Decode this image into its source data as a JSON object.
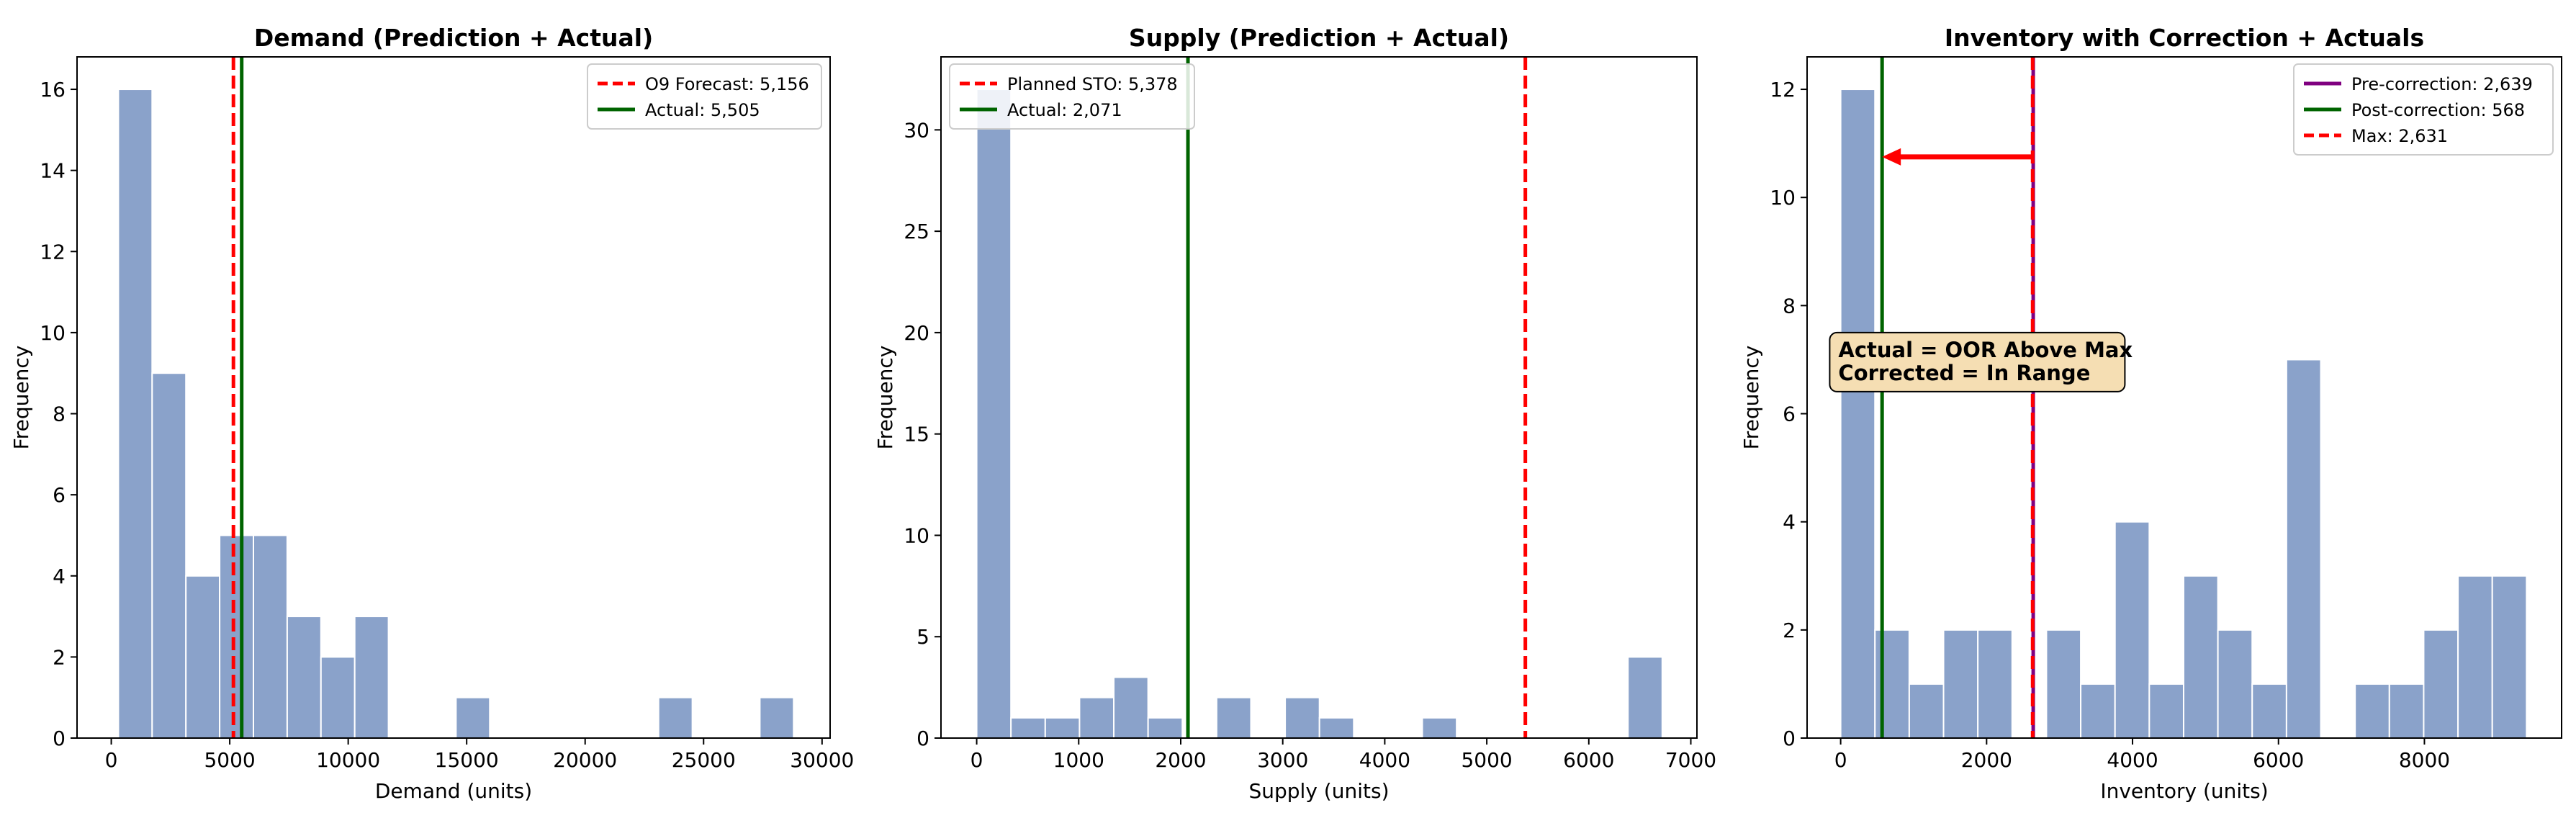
{
  "chart_data": [
    {
      "type": "bar",
      "title": "Demand (Prediction + Actual)",
      "xlabel": "Demand (units)",
      "ylabel": "Frequency",
      "xlim": [
        -1445,
        30340
      ],
      "ylim": [
        0,
        16.8
      ],
      "xticks": [
        0,
        5000,
        10000,
        15000,
        20000,
        25000,
        30000
      ],
      "yticks": [
        0,
        2,
        4,
        6,
        8,
        10,
        12,
        14,
        16
      ],
      "bin_edges": [
        300,
        1725,
        3150,
        4575,
        6000,
        7425,
        8850,
        10275,
        11700,
        13125,
        14550,
        15975,
        17400,
        18825,
        20250,
        21675,
        23100,
        24525,
        25950,
        27375,
        28800
      ],
      "counts": [
        16,
        9,
        4,
        5,
        5,
        3,
        2,
        3,
        0,
        0,
        1,
        0,
        0,
        0,
        0,
        0,
        1,
        0,
        0,
        1
      ],
      "lines": [
        {
          "label": "O9 Forecast: 5,156",
          "x": 5156,
          "color": "#ff0000",
          "style": "dashed"
        },
        {
          "label": "Actual: 5,505",
          "x": 5505,
          "color": "#006400",
          "style": "solid"
        }
      ],
      "legend": "top-right"
    },
    {
      "type": "bar",
      "title": "Supply (Prediction + Actual)",
      "xlabel": "Supply (units)",
      "ylabel": "Frequency",
      "xlim": [
        -350,
        7060
      ],
      "ylim": [
        0,
        33.6
      ],
      "xticks": [
        0,
        1000,
        2000,
        3000,
        4000,
        5000,
        6000,
        7000
      ],
      "yticks": [
        0,
        5,
        10,
        15,
        20,
        25,
        30
      ],
      "bin_edges": [
        0,
        336,
        672,
        1008,
        1344,
        1680,
        2016,
        2352,
        2688,
        3024,
        3360,
        3696,
        4032,
        4368,
        4704,
        5040,
        5376,
        5712,
        6048,
        6384,
        6720
      ],
      "counts": [
        32,
        1,
        1,
        2,
        3,
        1,
        0,
        2,
        0,
        2,
        1,
        0,
        0,
        1,
        0,
        0,
        0,
        0,
        0,
        4
      ],
      "lines": [
        {
          "label": "Planned STO: 5,378",
          "x": 5378,
          "color": "#ff0000",
          "style": "dashed"
        },
        {
          "label": "Actual: 2,071",
          "x": 2071,
          "color": "#006400",
          "style": "solid"
        }
      ],
      "legend": "top-left"
    },
    {
      "type": "bar",
      "title": "Inventory with Correction + Actuals",
      "xlabel": "Inventory (units)",
      "ylabel": "Frequency",
      "xlim": [
        -460,
        9880
      ],
      "ylim": [
        0,
        12.6
      ],
      "xticks": [
        0,
        2000,
        4000,
        6000,
        8000
      ],
      "yticks": [
        0,
        2,
        4,
        6,
        8,
        10,
        12
      ],
      "bin_edges": [
        0,
        470,
        940,
        1410,
        1880,
        2350,
        2820,
        3290,
        3760,
        4230,
        4700,
        5170,
        5640,
        6110,
        6580,
        7050,
        7520,
        7990,
        8460,
        8930,
        9400
      ],
      "counts": [
        12,
        2,
        1,
        2,
        2,
        0,
        2,
        1,
        4,
        1,
        3,
        2,
        1,
        7,
        0,
        1,
        1,
        2,
        3,
        3
      ],
      "lines": [
        {
          "label": "Pre-correction: 2,639",
          "x": 2639,
          "color": "#800080",
          "style": "solid"
        },
        {
          "label": "Post-correction: 568",
          "x": 568,
          "color": "#006400",
          "style": "solid"
        },
        {
          "label": "Max: 2,631",
          "x": 2631,
          "color": "#ff0000",
          "style": "dashed"
        }
      ],
      "arrow": {
        "from_x": 2639,
        "to_x": 568,
        "y": 10.75,
        "color": "#ff0000"
      },
      "annotation": {
        "lines": [
          "Actual = OOR Above Max",
          "Corrected = In Range"
        ],
        "x": -150,
        "y": 7.5
      },
      "legend": "top-right"
    }
  ],
  "colors": {
    "bar_fill": "#8aa2ca",
    "bar_edge": "#ffffff",
    "annotation_bg": "#f5deb3"
  }
}
